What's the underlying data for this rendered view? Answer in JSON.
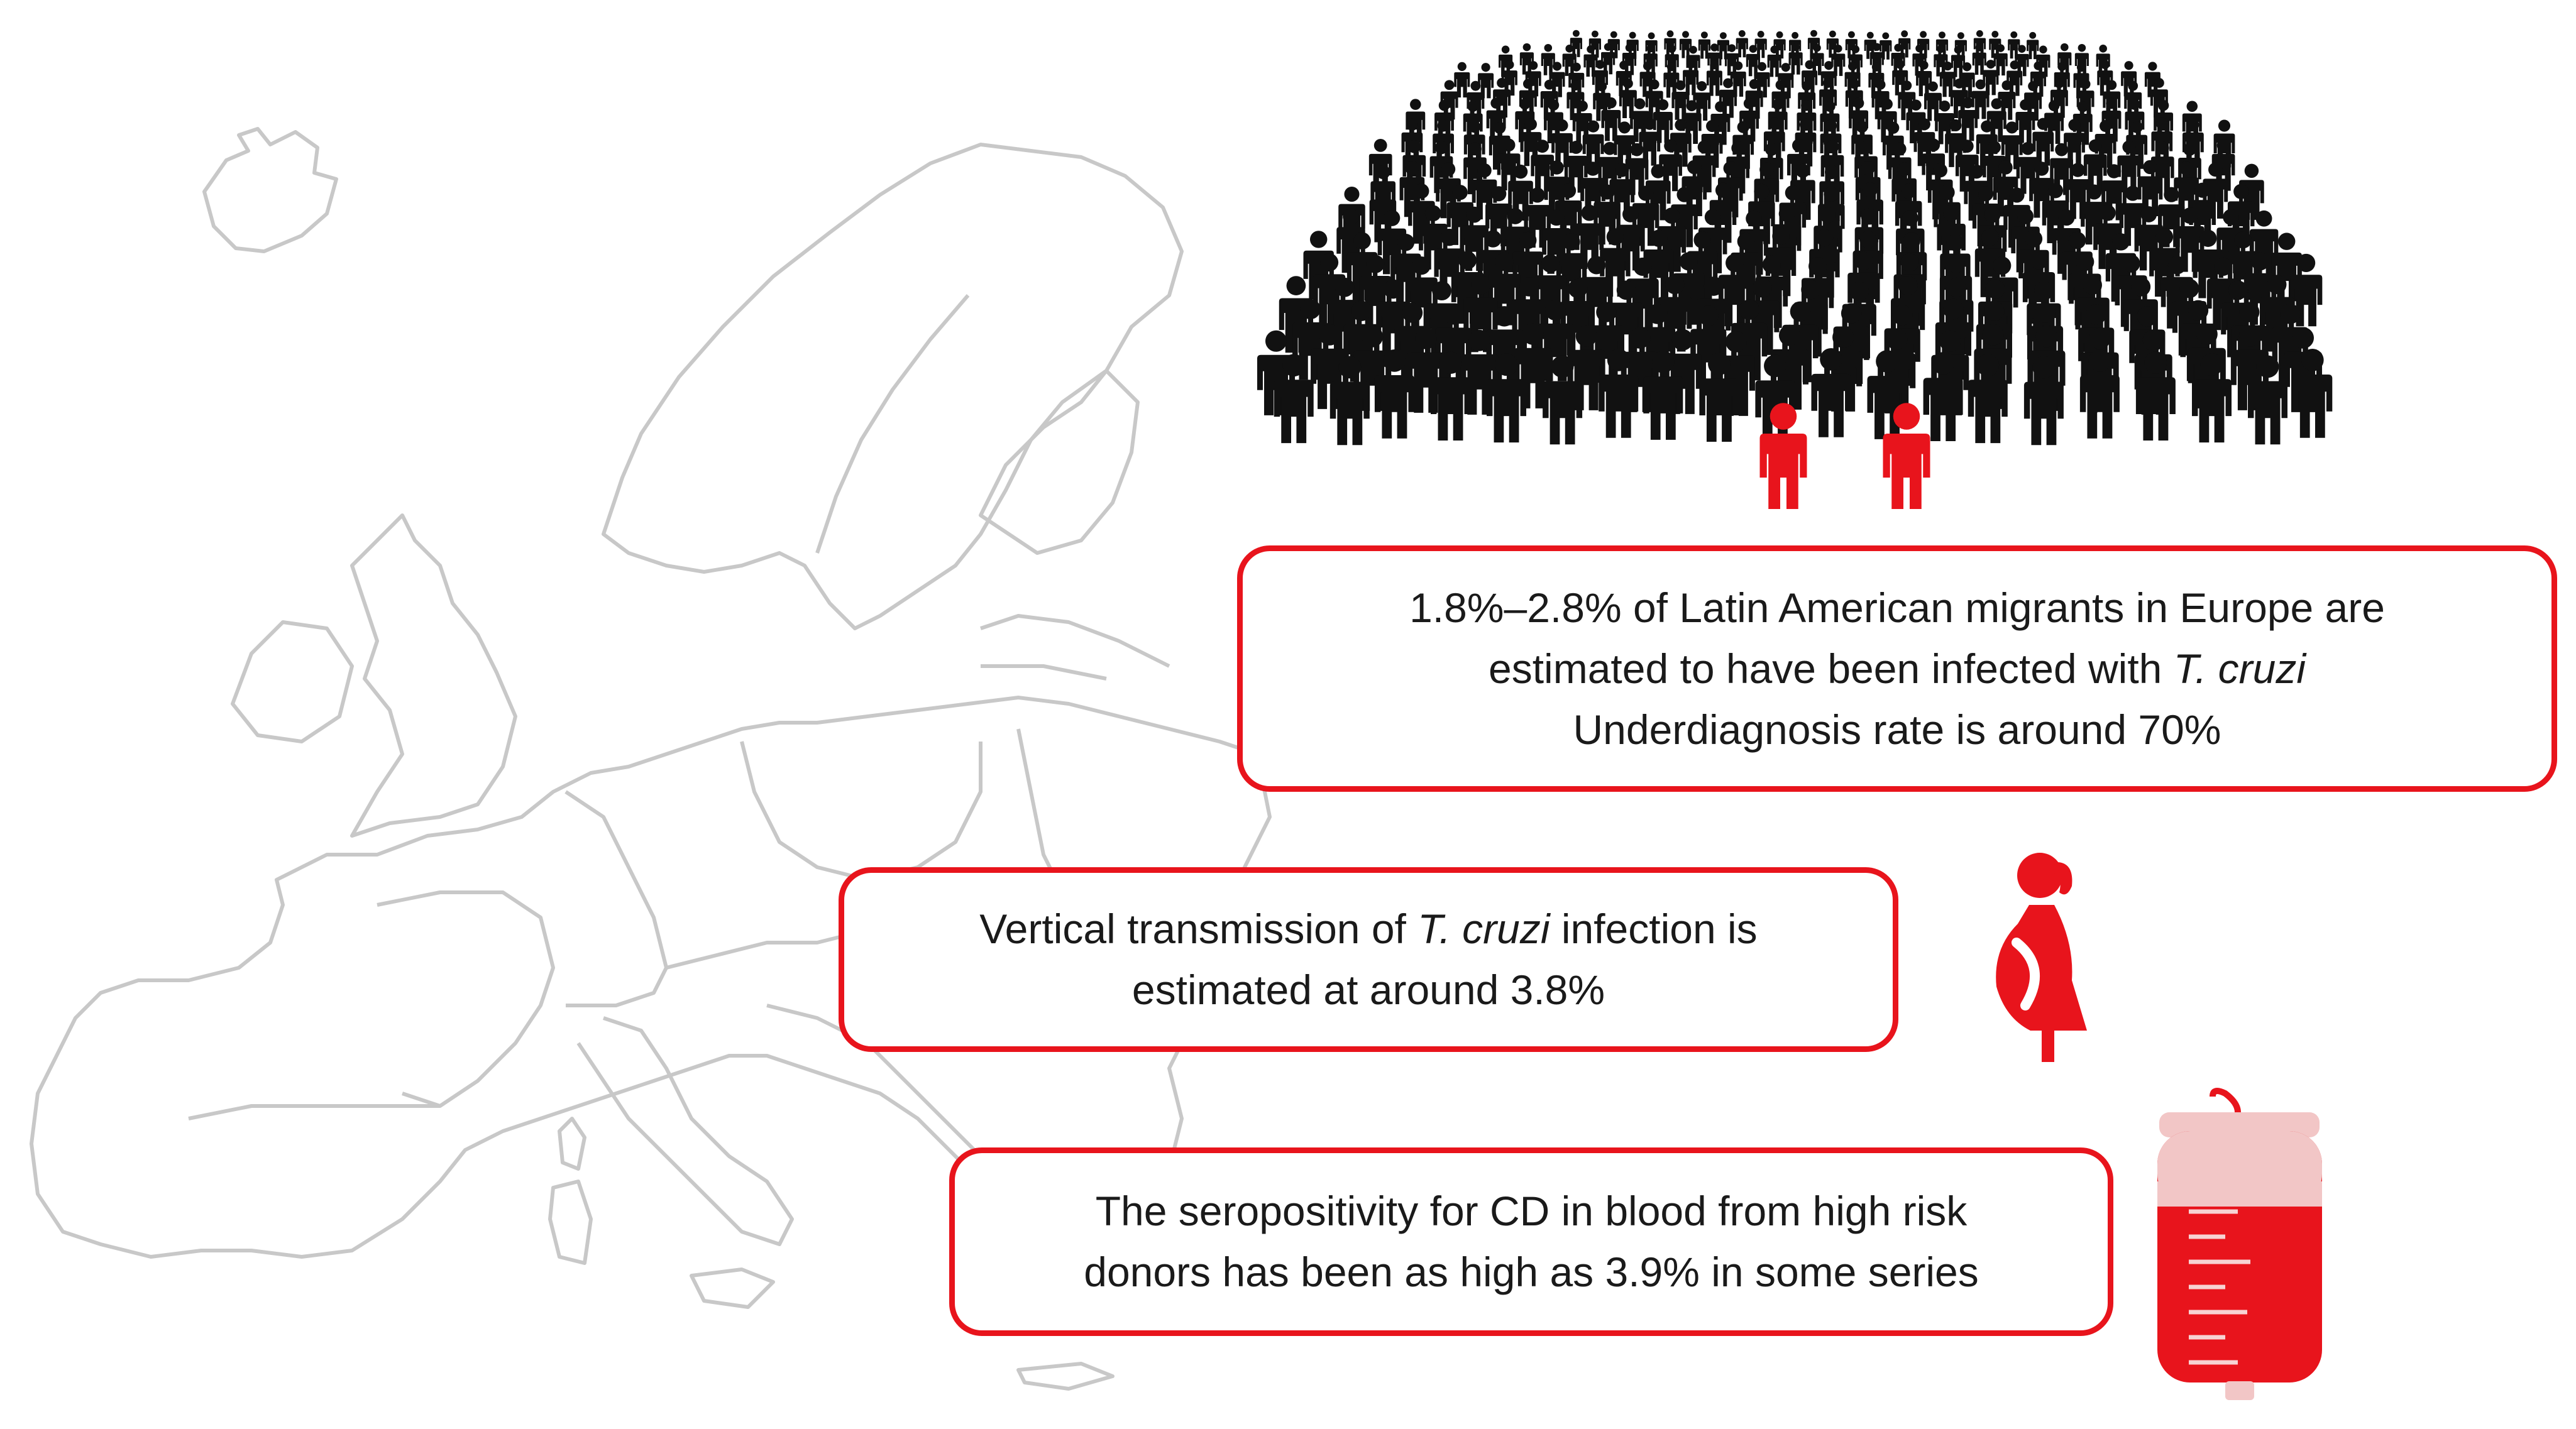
{
  "palette": {
    "accent": "#e8141c",
    "crowd": "#111111",
    "map_outline": "#c8c8c8"
  },
  "icons": {
    "map": "europe-outline-map",
    "crowd": "crowd-people-icon",
    "highlighted": "red-person-icon",
    "pregnancy": "pregnant-woman-icon",
    "blood": "blood-bag-icon"
  },
  "callouts": {
    "migrants": {
      "line1": "1.8%–2.8% of Latin American migrants in Europe are",
      "line2_pre": "estimated to have been infected with",
      "line2_em": "T. cruzi",
      "line3": "Underdiagnosis rate is around 70%"
    },
    "vertical": {
      "line1_pre": "Vertical transmission of ",
      "line1_em": "T. cruzi",
      "line1_post": " infection is",
      "line2": "estimated at around 3.8%"
    },
    "blood": {
      "line1": "The seropositivity for CD in blood from high risk",
      "line2": "donors has been as high as 3.9% in some series"
    }
  }
}
